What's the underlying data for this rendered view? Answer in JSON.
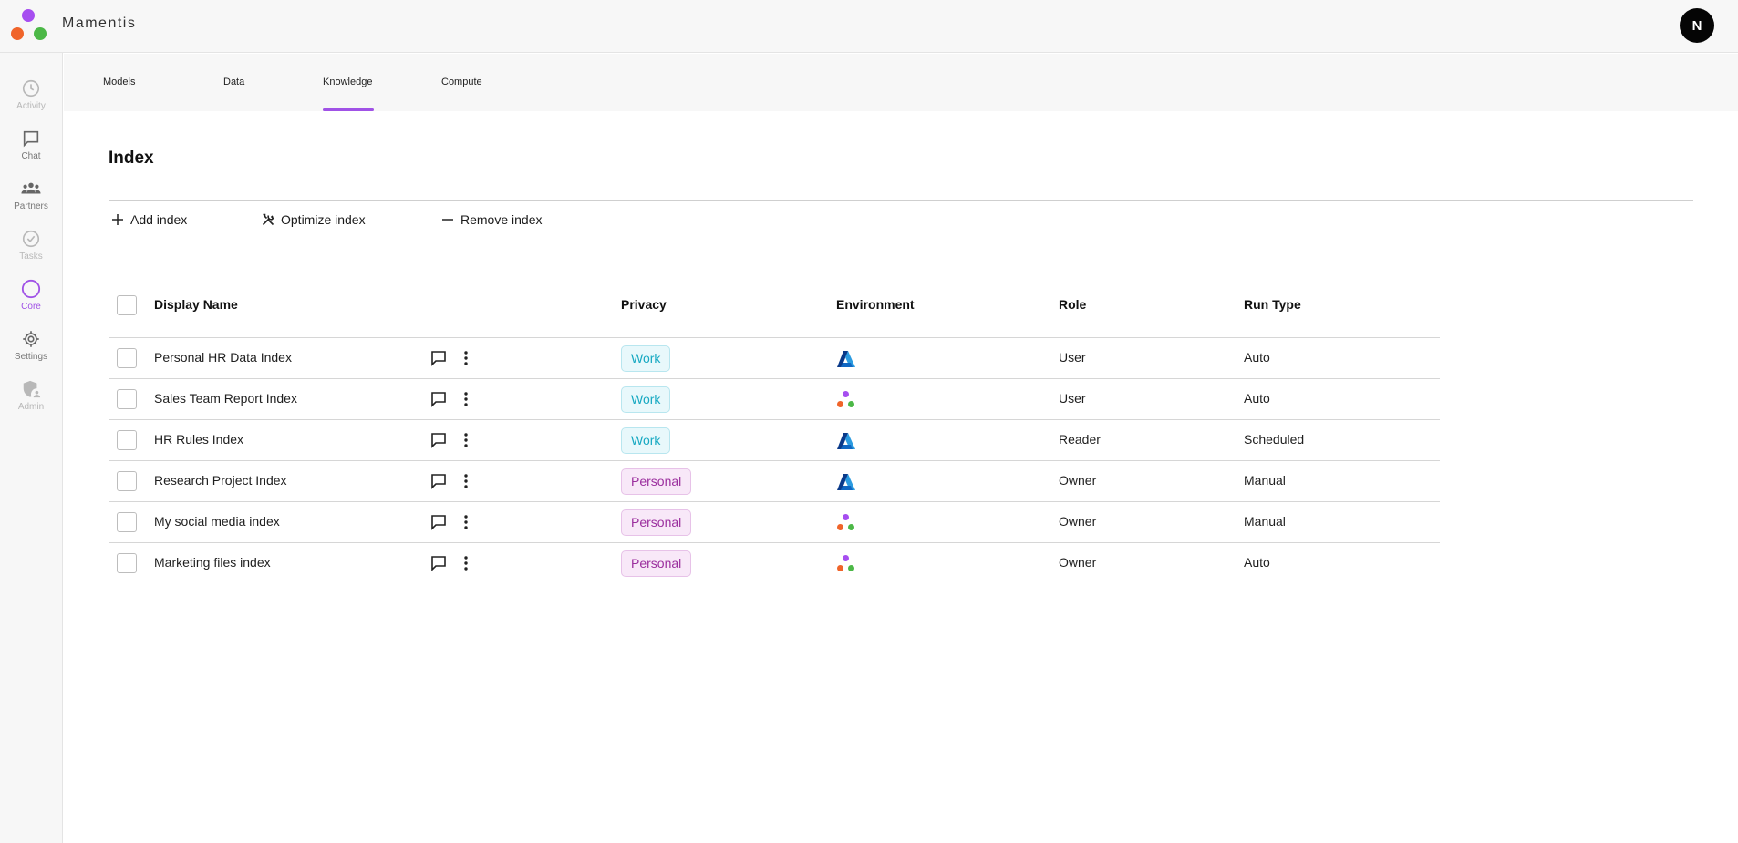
{
  "app": {
    "brand": "Mamentis",
    "logo_colors": [
      "#a64ef0",
      "#f0642a",
      "#4cb847"
    ],
    "user_initial": "N"
  },
  "colors": {
    "accent": "#a052e6",
    "work": "#17a9c2",
    "personal": "#9b2f9e",
    "azure_dark": "#0a3a8a",
    "azure_light": "#2b9be0"
  },
  "sidebar": {
    "items": [
      {
        "label": "Activity",
        "icon": "clock-icon",
        "active": false,
        "dim": true
      },
      {
        "label": "Chat",
        "icon": "chat-icon",
        "active": false,
        "dim": false
      },
      {
        "label": "Partners",
        "icon": "people-icon",
        "active": false,
        "dim": false
      },
      {
        "label": "Tasks",
        "icon": "check-circle-icon",
        "active": false,
        "dim": true
      },
      {
        "label": "Core",
        "icon": "circle-icon",
        "active": true,
        "dim": false
      },
      {
        "label": "Settings",
        "icon": "gear-icon",
        "active": false,
        "dim": false
      },
      {
        "label": "Admin",
        "icon": "shield-user-icon",
        "active": false,
        "dim": true
      }
    ]
  },
  "tabs": [
    {
      "label": "Models",
      "active": false
    },
    {
      "label": "Data",
      "active": false
    },
    {
      "label": "Knowledge",
      "active": true
    },
    {
      "label": "Compute",
      "active": false
    }
  ],
  "page": {
    "title": "Index",
    "actions": [
      {
        "label": "Add index",
        "icon": "plus-icon"
      },
      {
        "label": "Optimize index",
        "icon": "tools-icon"
      },
      {
        "label": "Remove index",
        "icon": "minus-icon"
      }
    ]
  },
  "table": {
    "headers": {
      "name": "Display Name",
      "privacy": "Privacy",
      "environment": "Environment",
      "role": "Role",
      "run_type": "Run Type"
    },
    "rows": [
      {
        "name": "Personal HR Data Index",
        "privacy": "Work",
        "environment": "azure-icon",
        "role": "User",
        "run_type": "Auto"
      },
      {
        "name": "Sales Team Report Index",
        "privacy": "Work",
        "environment": "mamentis-icon",
        "role": "User",
        "run_type": "Auto"
      },
      {
        "name": "HR Rules Index",
        "privacy": "Work",
        "environment": "azure-icon",
        "role": "Reader",
        "run_type": "Scheduled"
      },
      {
        "name": "Research Project Index",
        "privacy": "Personal",
        "environment": "azure-icon",
        "role": "Owner",
        "run_type": "Manual"
      },
      {
        "name": "My social media index",
        "privacy": "Personal",
        "environment": "mamentis-icon",
        "role": "Owner",
        "run_type": "Manual"
      },
      {
        "name": "Marketing files index",
        "privacy": "Personal",
        "environment": "mamentis-icon",
        "role": "Owner",
        "run_type": "Auto"
      }
    ]
  }
}
